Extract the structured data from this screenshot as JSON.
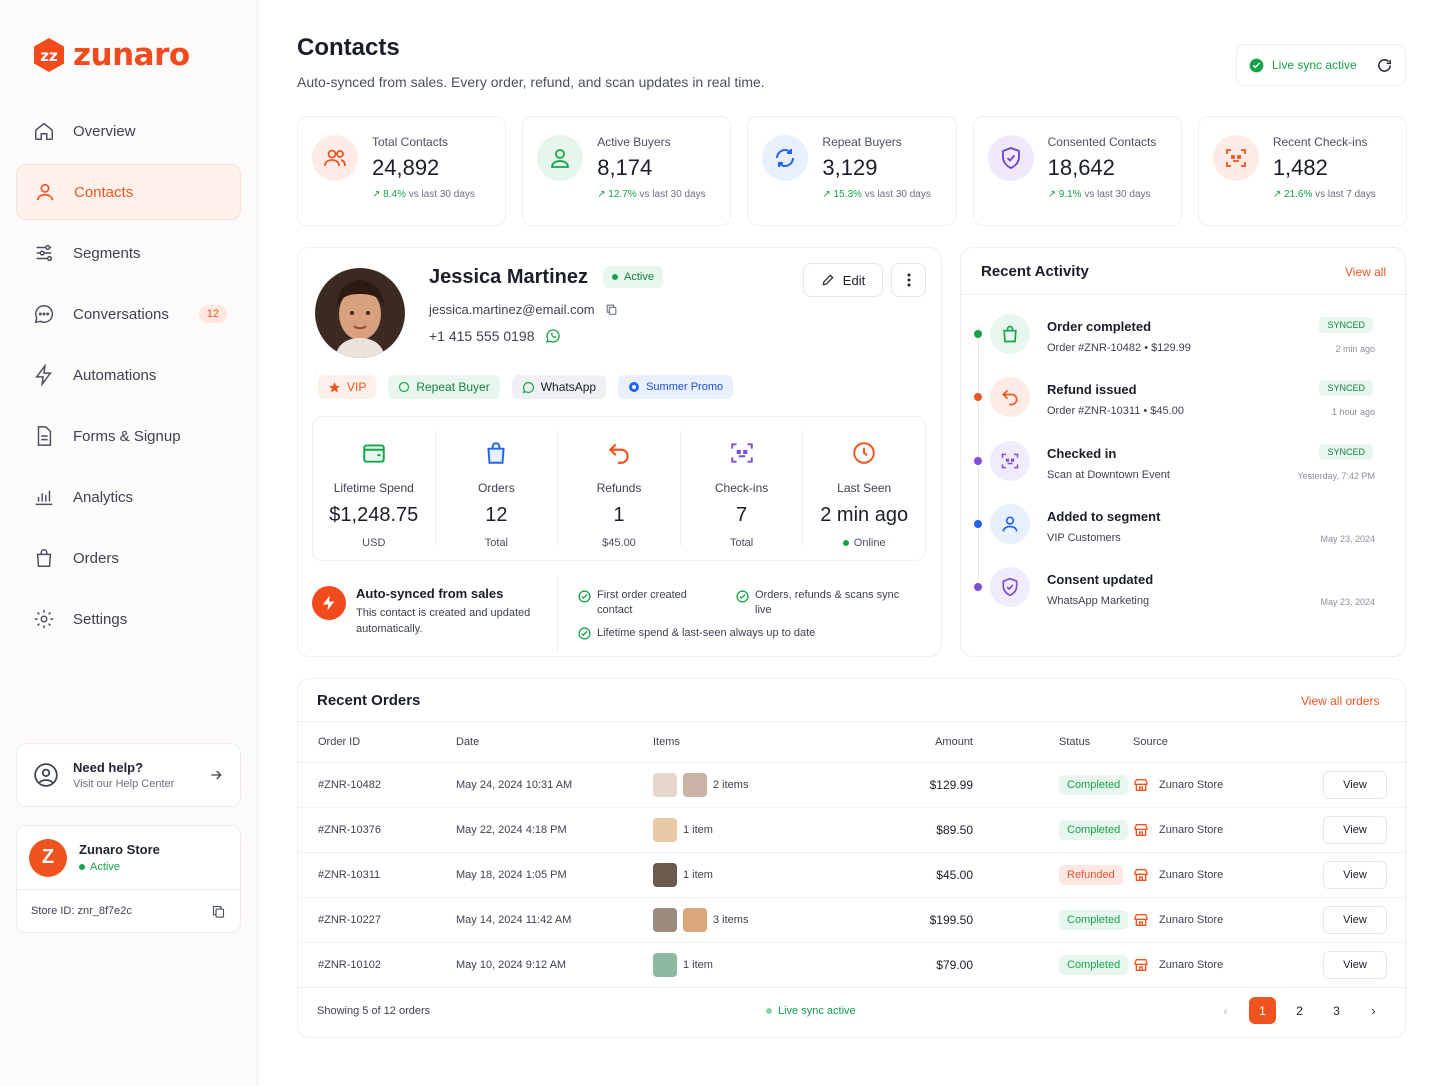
{
  "brand": {
    "name": "zunaro",
    "color": "#f0541e"
  },
  "nav": [
    {
      "label": "Overview",
      "icon": "home-icon",
      "active": false
    },
    {
      "label": "Contacts",
      "icon": "user-icon",
      "active": true
    },
    {
      "label": "Segments",
      "icon": "sliders-icon",
      "active": false
    },
    {
      "label": "Conversations",
      "icon": "chat-icon",
      "active": false,
      "badge": "12"
    },
    {
      "label": "Automations",
      "icon": "bolt-icon",
      "active": false
    },
    {
      "label": "Forms & Signup",
      "icon": "document-icon",
      "active": false
    },
    {
      "label": "Analytics",
      "icon": "bar-chart-icon",
      "active": false
    },
    {
      "label": "Orders",
      "icon": "bag-icon",
      "active": false
    },
    {
      "label": "Settings",
      "icon": "gear-icon",
      "active": false
    }
  ],
  "help": {
    "title": "Need help?",
    "subtitle": "Visit our Help Center"
  },
  "store": {
    "initial": "Z",
    "name": "Zunaro Store",
    "status": "Active",
    "id_label": "Store ID: znr_8f7e2c"
  },
  "header": {
    "title": "Contacts",
    "subtitle": "Auto-synced from sales. Every order, refund, and scan updates in real time.",
    "sync_label": "Live sync active"
  },
  "stats": [
    {
      "label": "Total Contacts",
      "value": "24,892",
      "delta": "8.4%",
      "period": "vs last 30 days",
      "icon": "users-icon"
    },
    {
      "label": "Active Buyers",
      "value": "8,174",
      "delta": "12.7%",
      "period": "vs last 30 days",
      "icon": "user-icon"
    },
    {
      "label": "Repeat Buyers",
      "value": "3,129",
      "delta": "15.3%",
      "period": "vs last 30 days",
      "icon": "repeat-icon"
    },
    {
      "label": "Consented Contacts",
      "value": "18,642",
      "delta": "9.1%",
      "period": "vs last 30 days",
      "icon": "shield-icon"
    },
    {
      "label": "Recent Check-ins",
      "value": "1,482",
      "delta": "21.6%",
      "period": "vs last 7 days",
      "icon": "scan-icon"
    }
  ],
  "profile": {
    "name": "Jessica Martinez",
    "status": "Active",
    "email": "jessica.martinez@email.com",
    "phone": "+1 415 555 0198",
    "edit_label": "Edit",
    "tags": [
      "VIP",
      "Repeat Buyer",
      "WhatsApp",
      "Summer Promo"
    ],
    "metrics": [
      {
        "label": "Lifetime Spend",
        "value": "$1,248.75",
        "sub": "USD"
      },
      {
        "label": "Orders",
        "value": "12",
        "sub": "Total"
      },
      {
        "label": "Refunds",
        "value": "1",
        "sub": "$45.00"
      },
      {
        "label": "Check-ins",
        "value": "7",
        "sub": "Total"
      },
      {
        "label": "Last Seen",
        "value": "2 min ago",
        "sub": "Online"
      }
    ],
    "auto_title": "Auto-synced from sales",
    "auto_text": "This contact is created and updated automatically.",
    "checks": [
      "First order created contact",
      "Orders, refunds & scans sync live",
      "Lifetime spend & last-seen always up to date"
    ]
  },
  "activity": {
    "title": "Recent Activity",
    "view_all": "View all",
    "items": [
      {
        "title": "Order completed",
        "sub": "Order #ZNR-10482  •  $129.99",
        "tag": "SYNCED",
        "time": "2 min ago",
        "dot": "#16a34a"
      },
      {
        "title": "Refund issued",
        "sub": "Order #ZNR-10311  •  $45.00",
        "tag": "SYNCED",
        "time": "1 hour ago",
        "dot": "#f0541e"
      },
      {
        "title": "Checked in",
        "sub": "Scan at Downtown Event",
        "tag": "SYNCED",
        "time": "Yesterday, 7:42 PM",
        "dot": "#7c4dd6"
      },
      {
        "title": "Added to segment",
        "sub": "VIP Customers",
        "tag": "",
        "time": "May 23, 2024",
        "dot": "#2563eb"
      },
      {
        "title": "Consent updated",
        "sub": "WhatsApp Marketing",
        "tag": "",
        "time": "May 23, 2024",
        "dot": "#7c4dd6"
      }
    ]
  },
  "orders": {
    "title": "Recent Orders",
    "view_all": "View all orders",
    "columns": [
      "Order ID",
      "Date",
      "Items",
      "Amount",
      "Status",
      "Source"
    ],
    "rows": [
      {
        "id": "#ZNR-10482",
        "date": "May 24, 2024 10:31 AM",
        "items": "2 items",
        "amount": "$129.99",
        "status": "Completed",
        "source": "Zunaro Store",
        "action": "View"
      },
      {
        "id": "#ZNR-10376",
        "date": "May 22, 2024 4:18 PM",
        "items": "1 item",
        "amount": "$89.50",
        "status": "Completed",
        "source": "Zunaro Store",
        "action": "View"
      },
      {
        "id": "#ZNR-10311",
        "date": "May 18, 2024 1:05 PM",
        "items": "1 item",
        "amount": "$45.00",
        "status": "Refunded",
        "source": "Zunaro Store",
        "action": "View"
      },
      {
        "id": "#ZNR-10227",
        "date": "May 14, 2024 11:42 AM",
        "items": "3 items",
        "amount": "$199.50",
        "status": "Completed",
        "source": "Zunaro Store",
        "action": "View"
      },
      {
        "id": "#ZNR-10102",
        "date": "May 10, 2024 9:12 AM",
        "items": "1 item",
        "amount": "$79.00",
        "status": "Completed",
        "source": "Zunaro Store",
        "action": "View"
      }
    ],
    "footer": "Showing 5 of 12 orders",
    "sync_label": "Live sync active",
    "pages": [
      "1",
      "2",
      "3"
    ]
  }
}
